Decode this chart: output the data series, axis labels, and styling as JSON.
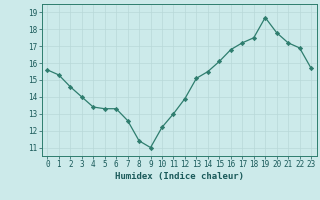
{
  "x": [
    0,
    1,
    2,
    3,
    4,
    5,
    6,
    7,
    8,
    9,
    10,
    11,
    12,
    13,
    14,
    15,
    16,
    17,
    18,
    19,
    20,
    21,
    22,
    23
  ],
  "y": [
    15.6,
    15.3,
    14.6,
    14.0,
    13.4,
    13.3,
    13.3,
    12.6,
    11.4,
    11.0,
    12.2,
    13.0,
    13.9,
    15.1,
    15.5,
    16.1,
    16.8,
    17.2,
    17.5,
    18.7,
    17.8,
    17.2,
    16.9,
    15.7
  ],
  "line_color": "#2e7d6e",
  "marker": "D",
  "marker_size": 2.2,
  "bg_color": "#cceaea",
  "grid_color": "#b8d8d8",
  "axis_color": "#2e7d6e",
  "xlabel": "Humidex (Indice chaleur)",
  "ylim": [
    10.5,
    19.5
  ],
  "yticks": [
    11,
    12,
    13,
    14,
    15,
    16,
    17,
    18,
    19
  ],
  "xticks": [
    0,
    1,
    2,
    3,
    4,
    5,
    6,
    7,
    8,
    9,
    10,
    11,
    12,
    13,
    14,
    15,
    16,
    17,
    18,
    19,
    20,
    21,
    22,
    23
  ],
  "font_color": "#1a5a5a",
  "tick_fontsize": 5.5,
  "xlabel_fontsize": 6.5,
  "line_width": 0.9
}
